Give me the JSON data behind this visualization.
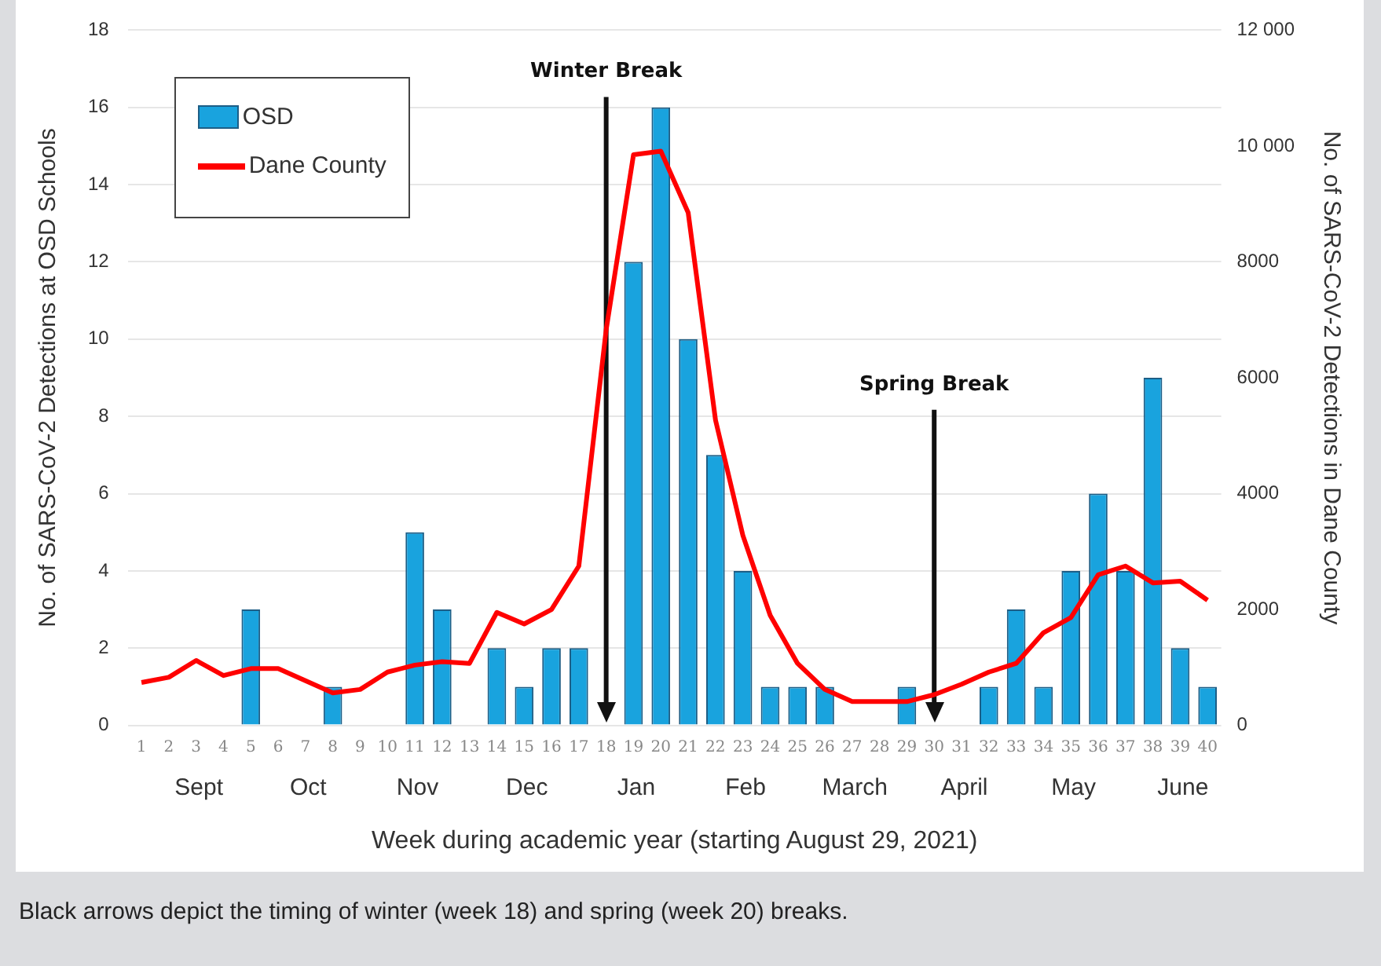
{
  "chart_data": {
    "type": "bar",
    "xlabel": "Week during academic year (starting August 29, 2021)",
    "ylabel": "No. of SARS-CoV-2 Detections at OSD Schools",
    "y2label": "No. of SARS-CoV-2 Detections in Dane County",
    "x": [
      1,
      2,
      3,
      4,
      5,
      6,
      7,
      8,
      9,
      10,
      11,
      12,
      13,
      14,
      15,
      16,
      17,
      18,
      19,
      20,
      21,
      22,
      23,
      24,
      25,
      26,
      27,
      28,
      29,
      30,
      31,
      32,
      33,
      34,
      35,
      36,
      37,
      38,
      39,
      40
    ],
    "series": [
      {
        "name": "OSD",
        "color": "#19a3de",
        "values": [
          0,
          0,
          0,
          0,
          3,
          0,
          0,
          1,
          0,
          0,
          5,
          3,
          0,
          2,
          1,
          2,
          2,
          0,
          12,
          16,
          10,
          7,
          4,
          1,
          1,
          1,
          0,
          0,
          1,
          0,
          0,
          1,
          3,
          1,
          4,
          6,
          4,
          9,
          2,
          1
        ]
      },
      {
        "name": "Dane County",
        "type": "line",
        "axis": "y2",
        "color": "#ff0000",
        "values": [
          740,
          830,
          1120,
          860,
          980,
          980,
          770,
          560,
          620,
          920,
          1040,
          1100,
          1070,
          1950,
          1750,
          2000,
          2750,
          6830,
          9850,
          9910,
          8850,
          5270,
          3280,
          1900,
          1070,
          620,
          410,
          410,
          410,
          530,
          710,
          920,
          1070,
          1600,
          1860,
          2600,
          2750,
          2460,
          2490,
          2160
        ]
      }
    ],
    "xlim": [
      0.5,
      40.5
    ],
    "xticks": [
      1,
      2,
      3,
      4,
      5,
      6,
      7,
      8,
      9,
      10,
      11,
      12,
      13,
      14,
      15,
      16,
      17,
      18,
      19,
      20,
      21,
      22,
      23,
      24,
      25,
      26,
      27,
      28,
      29,
      30,
      31,
      32,
      33,
      34,
      35,
      36,
      37,
      38,
      39,
      40
    ],
    "ylim": [
      0,
      18
    ],
    "yticks": [
      0,
      2,
      4,
      6,
      8,
      10,
      12,
      14,
      16,
      18
    ],
    "y2lim": [
      0,
      12000
    ],
    "y2ticks": [
      0,
      2000,
      4000,
      6000,
      8000,
      {
        "value": 10000,
        "label": "10 000"
      },
      {
        "value": 12000,
        "label": "12 000"
      }
    ],
    "grid": "y",
    "legend": "top left",
    "ref_lines": [
      {
        "axis": "x",
        "value": 18,
        "label": "Winter Break"
      },
      {
        "axis": "x",
        "value": 30,
        "label": "Spring Break"
      }
    ],
    "annotations": [
      "Sept",
      "Oct",
      "Nov",
      "Dec",
      "Jan",
      "Feb",
      "March",
      "April",
      "May",
      "June",
      "Black arrows depict the timing of winter (week 18) and spring (week 20) breaks."
    ]
  }
}
